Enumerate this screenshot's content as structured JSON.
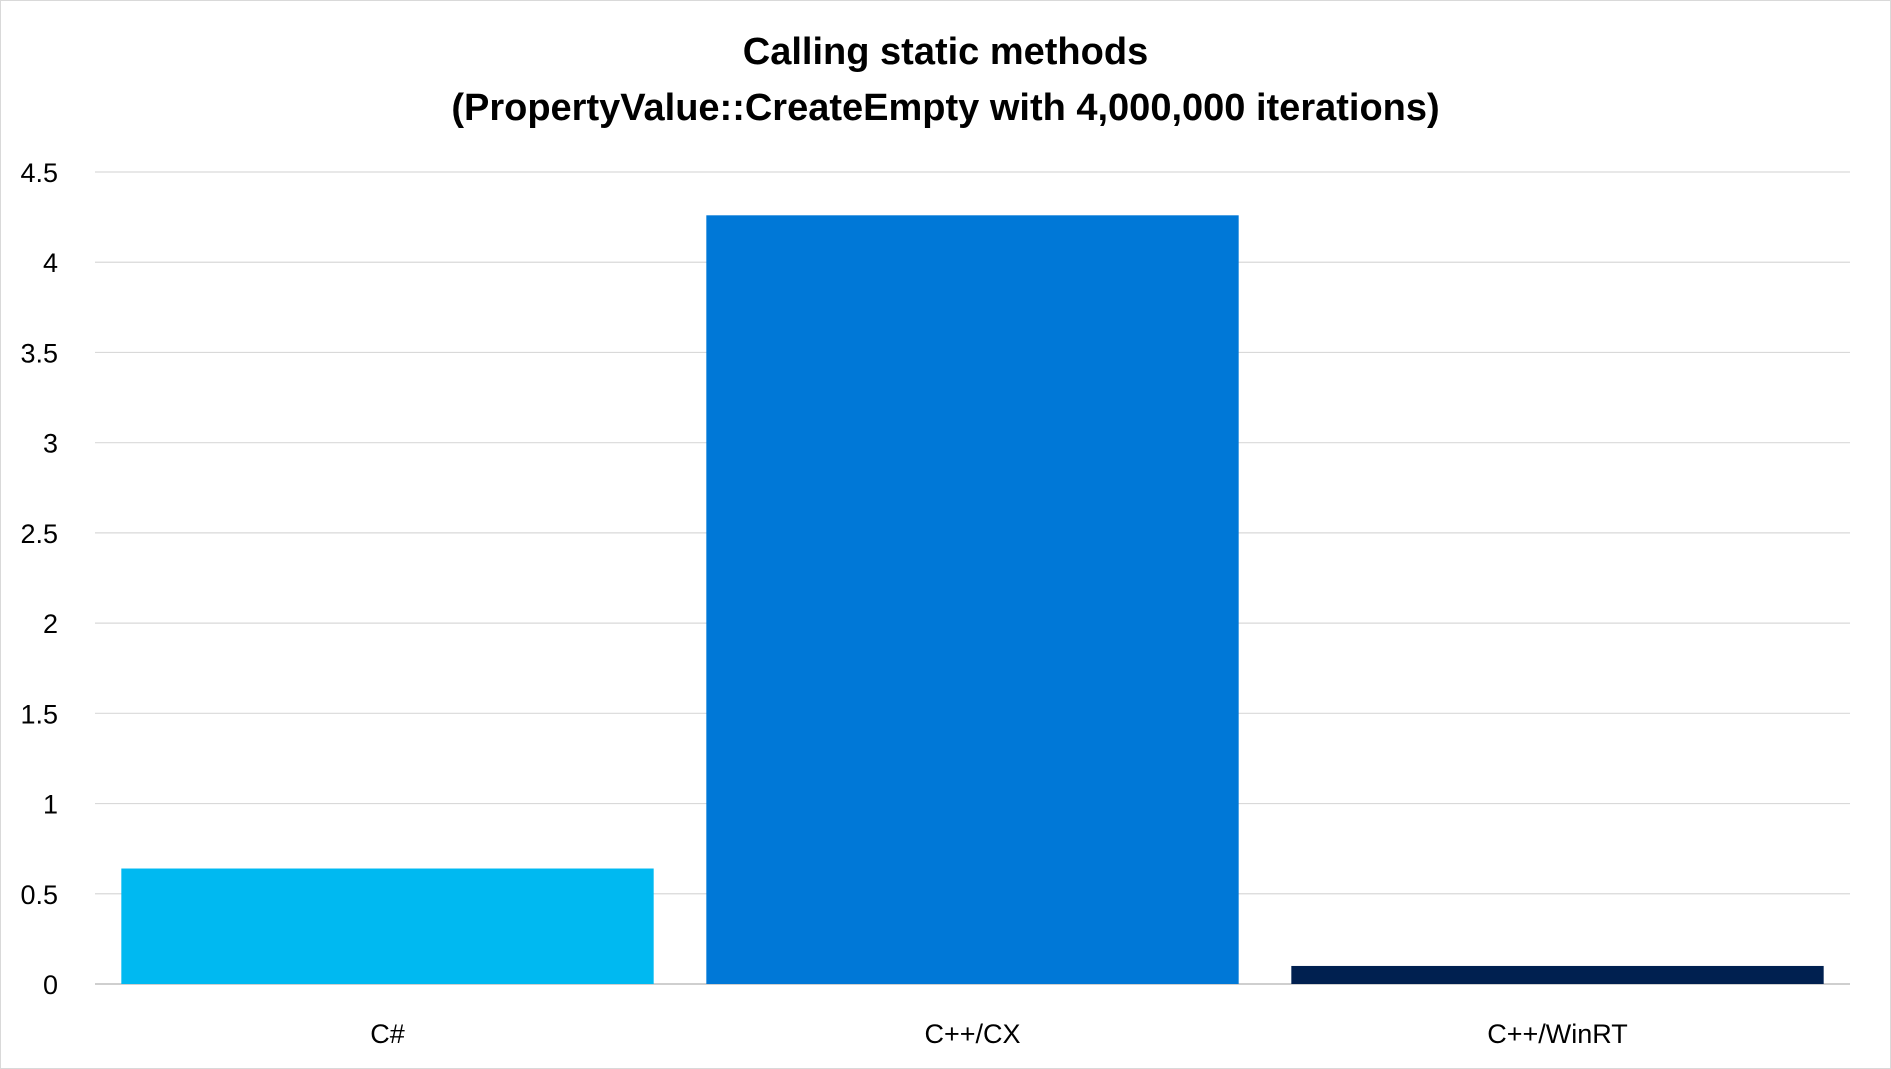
{
  "chart_data": {
    "type": "bar",
    "title_lines": [
      "Calling static methods",
      "(PropertyValue::CreateEmpty with 4,000,000 iterations)"
    ],
    "xlabel": "",
    "ylabel": "",
    "categories": [
      "C#",
      "C++/CX",
      "C++/WinRT"
    ],
    "values": [
      0.64,
      4.26,
      0.1
    ],
    "colors": [
      "#00b9f1",
      "#0078d7",
      "#002050"
    ],
    "ylim": [
      0,
      4.5
    ],
    "yticks": [
      0,
      0.5,
      1,
      1.5,
      2,
      2.5,
      3,
      3.5,
      4,
      4.5
    ],
    "ytick_labels": [
      "0",
      "0.5",
      "1",
      "1.5",
      "2",
      "2.5",
      "3",
      "3.5",
      "4",
      "4.5"
    ],
    "grid": true,
    "legend": "none"
  }
}
